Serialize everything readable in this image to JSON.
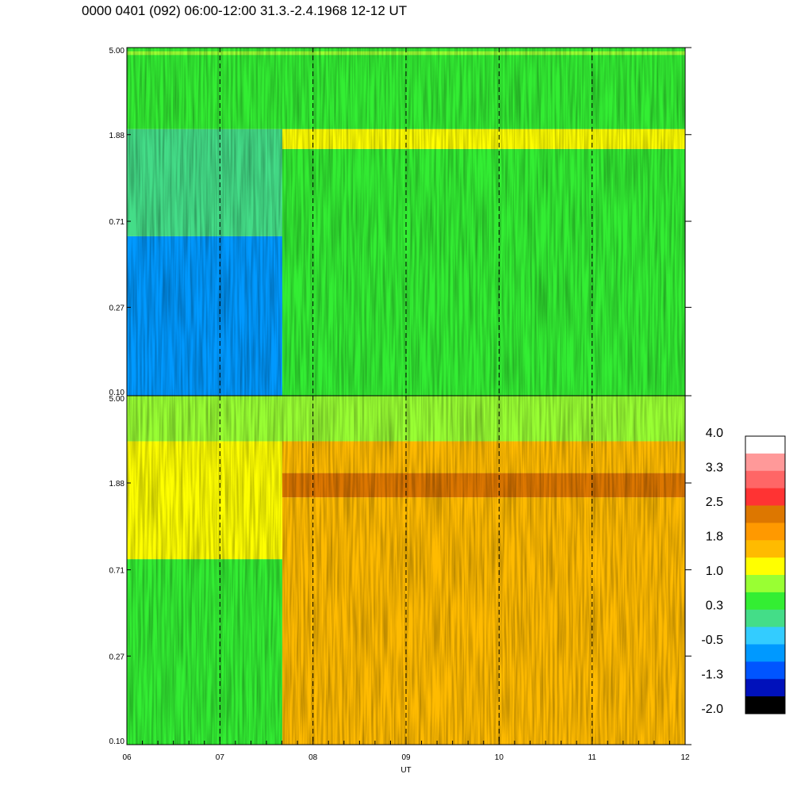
{
  "title": "0000 0401 (092) 06:00-12:00 31.3.-2.4.1968  12-12 UT",
  "chart_data": [
    {
      "type": "heatmap",
      "panel": "top",
      "x_ticks": [
        "06",
        "07",
        "08",
        "09",
        "10",
        "11",
        "12"
      ],
      "xlim": [
        6,
        12
      ],
      "y_ticks": [
        "0.10",
        "0.27",
        "0.71",
        "1.88",
        "5.00"
      ],
      "ylim": [
        0.1,
        5.0
      ],
      "y_scale": "log",
      "grid": "vertical dashed lines at each hour",
      "regions": [
        {
          "x_range": [
            6.0,
            7.67
          ],
          "y_range": [
            0.1,
            0.6
          ],
          "level": -0.8
        },
        {
          "x_range": [
            6.0,
            7.67
          ],
          "y_range": [
            0.6,
            2.0
          ],
          "level": 0.0
        },
        {
          "x_range": [
            6.0,
            12.0
          ],
          "y_range": [
            2.0,
            5.0
          ],
          "level": 0.6
        },
        {
          "x_range": [
            7.67,
            12.0
          ],
          "y_range": [
            0.1,
            1.6
          ],
          "level": 0.45
        },
        {
          "x_range": [
            7.67,
            12.0
          ],
          "y_range": [
            1.6,
            2.0
          ],
          "level": 1.1
        },
        {
          "x_range": [
            6.0,
            12.0
          ],
          "y_range": [
            4.6,
            4.8
          ],
          "level": 1.0
        }
      ]
    },
    {
      "type": "heatmap",
      "panel": "bottom",
      "x_ticks": [
        "06",
        "07",
        "08",
        "09",
        "10",
        "11",
        "12"
      ],
      "xlim": [
        6,
        12
      ],
      "xlabel": "UT",
      "y_ticks": [
        "0.10",
        "0.27",
        "0.71",
        "1.88",
        "5.00"
      ],
      "ylim": [
        0.1,
        5.0
      ],
      "y_scale": "log",
      "grid": "vertical dashed lines at each hour",
      "regions": [
        {
          "x_range": [
            6.0,
            7.67
          ],
          "y_range": [
            0.1,
            0.8
          ],
          "level": 0.4
        },
        {
          "x_range": [
            6.0,
            7.67
          ],
          "y_range": [
            0.8,
            3.0
          ],
          "level": 1.2
        },
        {
          "x_range": [
            6.0,
            12.0
          ],
          "y_range": [
            3.0,
            5.0
          ],
          "level": 1.0
        },
        {
          "x_range": [
            7.67,
            12.0
          ],
          "y_range": [
            0.1,
            1.6
          ],
          "level": 1.6
        },
        {
          "x_range": [
            7.67,
            12.0
          ],
          "y_range": [
            1.6,
            2.1
          ],
          "level": 2.2
        },
        {
          "x_range": [
            7.67,
            12.0
          ],
          "y_range": [
            2.1,
            3.0
          ],
          "level": 1.8
        }
      ]
    }
  ],
  "colorbar": {
    "labels": [
      "4.0",
      "3.3",
      "2.5",
      "1.8",
      "1.0",
      "0.3",
      "-0.5",
      "-1.3",
      "-2.0"
    ],
    "colors": [
      "#ffffff",
      "#ff9999",
      "#ff6666",
      "#ff3333",
      "#dd7700",
      "#ff9900",
      "#ffbb00",
      "#ffff00",
      "#99ff33",
      "#33ee33",
      "#44dd88",
      "#33ccff",
      "#0099ff",
      "#0055ff",
      "#0011bb",
      "#000000"
    ]
  }
}
